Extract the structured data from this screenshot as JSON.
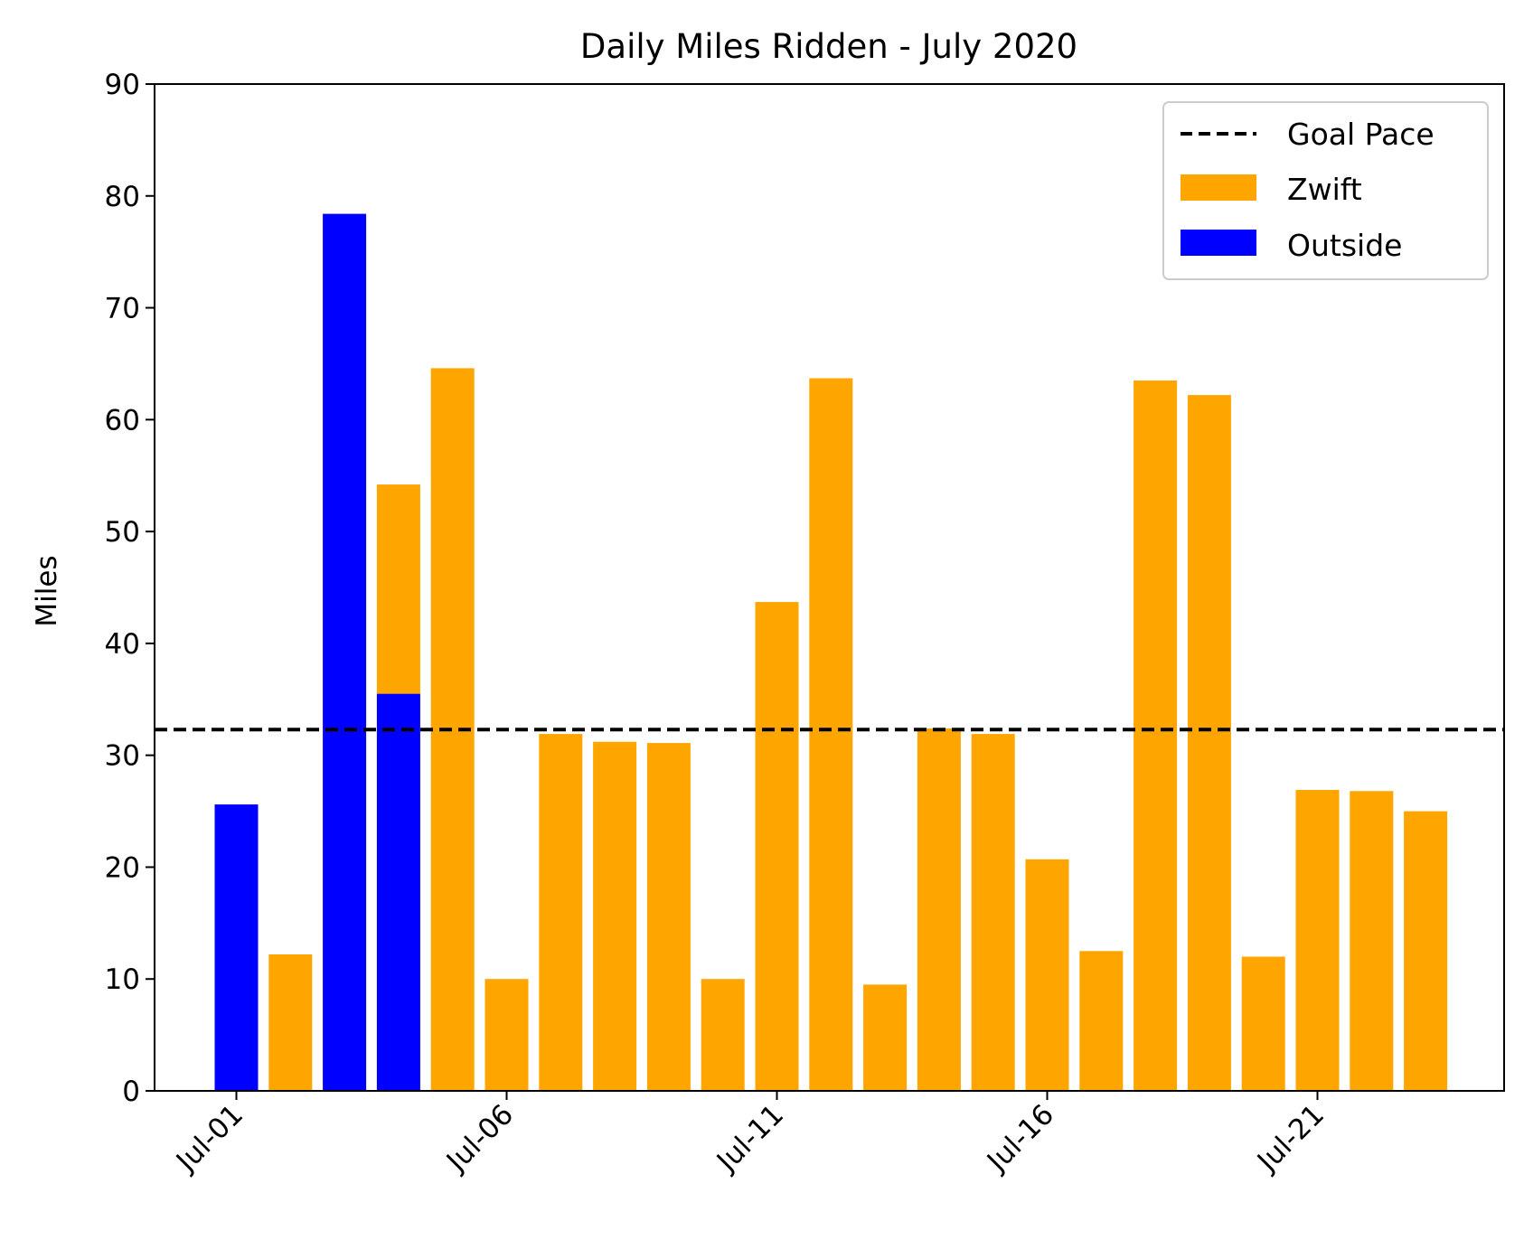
{
  "chart_data": {
    "type": "bar",
    "stacked": true,
    "title": "Daily Miles Ridden - July 2020",
    "xlabel": "",
    "ylabel": "Miles",
    "ylim": [
      0,
      90
    ],
    "yticks": [
      0,
      10,
      20,
      30,
      40,
      50,
      60,
      70,
      80,
      90
    ],
    "x": [
      "2020-07-01",
      "2020-07-02",
      "2020-07-03",
      "2020-07-04",
      "2020-07-05",
      "2020-07-06",
      "2020-07-07",
      "2020-07-08",
      "2020-07-09",
      "2020-07-10",
      "2020-07-11",
      "2020-07-12",
      "2020-07-13",
      "2020-07-14",
      "2020-07-15",
      "2020-07-16",
      "2020-07-17",
      "2020-07-18",
      "2020-07-19",
      "2020-07-20",
      "2020-07-21",
      "2020-07-22",
      "2020-07-23"
    ],
    "xtick_labels": [
      {
        "x": "2020-07-01",
        "label": "Jul-01"
      },
      {
        "x": "2020-07-06",
        "label": "Jul-06"
      },
      {
        "x": "2020-07-11",
        "label": "Jul-11"
      },
      {
        "x": "2020-07-16",
        "label": "Jul-16"
      },
      {
        "x": "2020-07-21",
        "label": "Jul-21"
      }
    ],
    "series": [
      {
        "name": "Outside",
        "color": "#0000ff",
        "values": [
          25.6,
          0,
          78.4,
          35.5,
          0,
          0,
          0,
          0,
          0,
          0,
          0,
          0,
          0,
          0,
          0,
          0,
          0,
          0,
          0,
          0,
          0,
          0,
          0
        ]
      },
      {
        "name": "Zwift",
        "color": "#ffa500",
        "values": [
          0,
          12.2,
          0,
          18.7,
          64.6,
          10.0,
          31.9,
          31.2,
          31.1,
          10.0,
          43.7,
          63.7,
          9.5,
          32.4,
          31.9,
          20.7,
          12.5,
          63.5,
          62.2,
          12.0,
          26.9,
          26.8,
          25.0
        ]
      }
    ],
    "reference_lines": [
      {
        "name": "Goal Pace",
        "y": 32.3,
        "color": "#000000",
        "style": "dashed"
      }
    ],
    "legend": {
      "position": "top-right",
      "entries": [
        "Goal Pace",
        "Zwift",
        "Outside"
      ]
    },
    "grid": false
  }
}
